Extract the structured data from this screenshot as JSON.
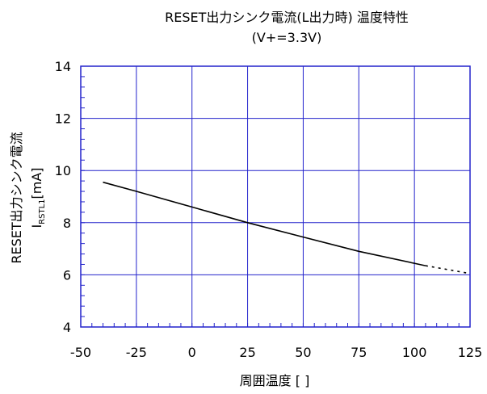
{
  "chart_data": {
    "type": "line",
    "title": "RESET出力シンク電流(L出力時) 温度特性",
    "subtitle": "(V+=3.3V)",
    "xlabel": "周囲温度 [ ]",
    "ylabel_line1": "RESET出力シンク電流",
    "ylabel_line2_main": "I",
    "ylabel_line2_sub": "RSTL1",
    "ylabel_line2_unit": "[mA]",
    "xlim": [
      -50,
      125
    ],
    "ylim": [
      4,
      14
    ],
    "xticks": [
      -50,
      -25,
      0,
      25,
      50,
      75,
      100,
      125
    ],
    "yticks": [
      4,
      6,
      8,
      10,
      12,
      14
    ],
    "grid": true,
    "colors": {
      "grid": "#2222cc",
      "axes": "#2222cc",
      "line": "#000000"
    },
    "series": [
      {
        "style": "solid",
        "x": [
          -40,
          -25,
          0,
          25,
          50,
          75,
          105
        ],
        "y": [
          9.55,
          9.2,
          8.6,
          8.0,
          7.45,
          6.9,
          6.35
        ]
      },
      {
        "style": "dotted",
        "x": [
          105,
          115,
          125
        ],
        "y": [
          6.35,
          6.2,
          6.05
        ]
      }
    ]
  }
}
